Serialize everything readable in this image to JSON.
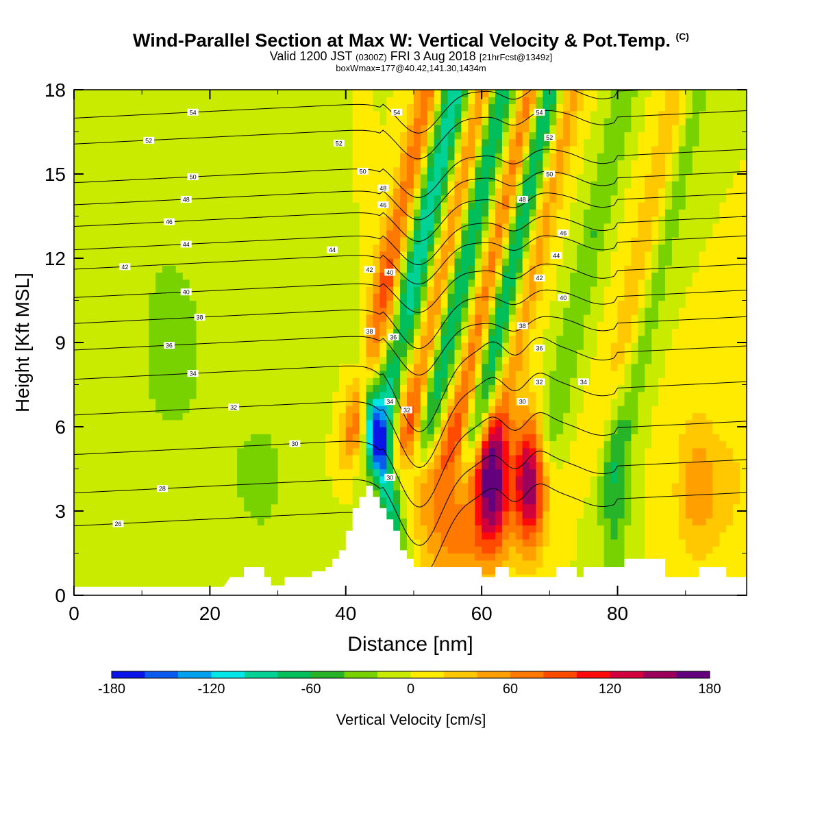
{
  "header": {
    "title": "Wind-Parallel Section at Max W: Vertical Velocity & Pot.Temp.",
    "title_mark": "(C)",
    "valid_prefix": "Valid 1200 JST",
    "valid_utc": "(0300Z)",
    "valid_date": "FRI 3 Aug 2018",
    "forecast_tag": "[21hrFcst@1349z]",
    "box_wmax": "boxWmax=177@40.42,141.30,1434m"
  },
  "chart_data": {
    "type": "heatmap",
    "title": "Wind-Parallel Section at Max W: Vertical Velocity & Pot.Temp.",
    "xlabel": "Distance [nm]",
    "ylabel": "Height [Kft MSL]",
    "xlim": [
      0,
      99
    ],
    "ylim": [
      0,
      18
    ],
    "x_ticks": [
      0,
      20,
      40,
      60,
      80
    ],
    "y_ticks": [
      0,
      3,
      6,
      9,
      12,
      15,
      18
    ],
    "colorbar": {
      "label": "Vertical Velocity [cm/s]",
      "range": [
        -180,
        180
      ],
      "tick_labels": [
        "-180",
        "-120",
        "-60",
        "0",
        "60",
        "120",
        "180"
      ],
      "tick_values": [
        -180,
        -120,
        -60,
        0,
        60,
        120,
        180
      ],
      "colors": [
        "#0a14e6",
        "#0a5af0",
        "#00a0f0",
        "#00e6e6",
        "#00d296",
        "#00be5a",
        "#28b428",
        "#78d200",
        "#c8eb00",
        "#ffeb00",
        "#ffc800",
        "#ffa000",
        "#ff7800",
        "#ff4b00",
        "#ff0a0a",
        "#d2003c",
        "#9b005a",
        "#64007d"
      ]
    },
    "terrain": [
      [
        0,
        0.3
      ],
      [
        22,
        0.3
      ],
      [
        23,
        0.65
      ],
      [
        25,
        0.65
      ],
      [
        25,
        1.0
      ],
      [
        28,
        1.0
      ],
      [
        28,
        0.65
      ],
      [
        29,
        0.65
      ],
      [
        29,
        0.35
      ],
      [
        31,
        0.35
      ],
      [
        31,
        0.65
      ],
      [
        35,
        0.65
      ],
      [
        35,
        0.85
      ],
      [
        37,
        0.85
      ],
      [
        37,
        1.0
      ],
      [
        38,
        1.0
      ],
      [
        38,
        1.3
      ],
      [
        39,
        1.3
      ],
      [
        39,
        1.6
      ],
      [
        40,
        1.6
      ],
      [
        40,
        2.3
      ],
      [
        41,
        2.3
      ],
      [
        41,
        3.1
      ],
      [
        42,
        3.1
      ],
      [
        42,
        3.5
      ],
      [
        43,
        3.5
      ],
      [
        43,
        3.9
      ],
      [
        44,
        3.9
      ],
      [
        44,
        3.5
      ],
      [
        45,
        3.5
      ],
      [
        45,
        3.1
      ],
      [
        46,
        3.1
      ],
      [
        46,
        2.7
      ],
      [
        47,
        2.7
      ],
      [
        47,
        2.3
      ],
      [
        48,
        2.3
      ],
      [
        48,
        1.6
      ],
      [
        49,
        1.6
      ],
      [
        49,
        1.3
      ],
      [
        50,
        1.3
      ],
      [
        50,
        1.0
      ],
      [
        60,
        1.0
      ],
      [
        60,
        0.65
      ],
      [
        62,
        0.65
      ],
      [
        62,
        1.0
      ],
      [
        64,
        1.0
      ],
      [
        64,
        0.65
      ],
      [
        71,
        0.65
      ],
      [
        71,
        1.0
      ],
      [
        74,
        1.0
      ],
      [
        74,
        0.65
      ],
      [
        75,
        0.65
      ],
      [
        75,
        1.0
      ],
      [
        81,
        1.0
      ],
      [
        81,
        1.3
      ],
      [
        87,
        1.3
      ],
      [
        87,
        0.65
      ],
      [
        92,
        0.65
      ],
      [
        92,
        1.0
      ],
      [
        96,
        1.0
      ],
      [
        96,
        0.65
      ],
      [
        99,
        0.65
      ]
    ],
    "theta_series": [
      {
        "level": 26,
        "label_x": 6.5,
        "label_y": 2.55
      },
      {
        "level": 28,
        "label_x": 13,
        "label_y": 3.8
      },
      {
        "level": 30,
        "label_x": 32.5,
        "label_y": 5.4
      },
      {
        "level": 32,
        "label_x": 23.5,
        "label_y": 6.7
      },
      {
        "level": 34,
        "label_x": 17.5,
        "label_y": 7.9
      },
      {
        "level": 36,
        "label_x": 14,
        "label_y": 8.9
      },
      {
        "level": 38,
        "label_x": 18.5,
        "label_y": 9.9
      },
      {
        "level": 40,
        "label_x": 16.5,
        "label_y": 10.8
      },
      {
        "level": 42,
        "label_x": 7.5,
        "label_y": 11.7
      },
      {
        "level": 44,
        "label_x": 16.5,
        "label_y": 12.5
      },
      {
        "level": 46,
        "label_x": 14,
        "label_y": 13.3
      },
      {
        "level": 48,
        "label_x": 16.5,
        "label_y": 14.1
      },
      {
        "level": 50,
        "label_x": 17.5,
        "label_y": 14.9
      },
      {
        "level": 52,
        "label_x": 11,
        "label_y": 16.2
      },
      {
        "level": 54,
        "label_x": 17.5,
        "label_y": 17.2
      }
    ],
    "theta_labels": [
      {
        "text": "26",
        "x": 6.5,
        "y": 2.55
      },
      {
        "text": "28",
        "x": 13,
        "y": 3.8
      },
      {
        "text": "30",
        "x": 32.5,
        "y": 5.4
      },
      {
        "text": "32",
        "x": 23.5,
        "y": 6.7
      },
      {
        "text": "34",
        "x": 17.5,
        "y": 7.9
      },
      {
        "text": "36",
        "x": 14,
        "y": 8.9
      },
      {
        "text": "38",
        "x": 18.5,
        "y": 9.9
      },
      {
        "text": "40",
        "x": 16.5,
        "y": 10.8
      },
      {
        "text": "42",
        "x": 7.5,
        "y": 11.7
      },
      {
        "text": "44",
        "x": 16.5,
        "y": 12.5
      },
      {
        "text": "46",
        "x": 14,
        "y": 13.3
      },
      {
        "text": "48",
        "x": 16.5,
        "y": 14.1
      },
      {
        "text": "50",
        "x": 17.5,
        "y": 14.9
      },
      {
        "text": "52",
        "x": 11,
        "y": 16.2
      },
      {
        "text": "54",
        "x": 17.5,
        "y": 17.2
      },
      {
        "text": "44",
        "x": 38,
        "y": 12.3
      },
      {
        "text": "52",
        "x": 39,
        "y": 16.1
      },
      {
        "text": "50",
        "x": 42.5,
        "y": 15.1
      },
      {
        "text": "48",
        "x": 45.5,
        "y": 14.5
      },
      {
        "text": "46",
        "x": 45.5,
        "y": 13.9
      },
      {
        "text": "42",
        "x": 43.5,
        "y": 11.6
      },
      {
        "text": "40",
        "x": 46.5,
        "y": 11.5
      },
      {
        "text": "38",
        "x": 43.5,
        "y": 9.4
      },
      {
        "text": "36",
        "x": 47,
        "y": 9.2
      },
      {
        "text": "34",
        "x": 46.5,
        "y": 6.9
      },
      {
        "text": "32",
        "x": 49,
        "y": 6.6
      },
      {
        "text": "30",
        "x": 46.5,
        "y": 4.2
      },
      {
        "text": "54",
        "x": 47.5,
        "y": 17.2
      },
      {
        "text": "54",
        "x": 68.5,
        "y": 17.2
      },
      {
        "text": "52",
        "x": 70,
        "y": 16.3
      },
      {
        "text": "50",
        "x": 70,
        "y": 15.0
      },
      {
        "text": "48",
        "x": 66,
        "y": 14.1
      },
      {
        "text": "46",
        "x": 72,
        "y": 12.9
      },
      {
        "text": "44",
        "x": 71,
        "y": 12.1
      },
      {
        "text": "42",
        "x": 68.5,
        "y": 11.3
      },
      {
        "text": "40",
        "x": 72,
        "y": 10.6
      },
      {
        "text": "38",
        "x": 66,
        "y": 9.6
      },
      {
        "text": "36",
        "x": 68.5,
        "y": 8.8
      },
      {
        "text": "32",
        "x": 68.5,
        "y": 7.6
      },
      {
        "text": "30",
        "x": 66,
        "y": 6.9
      },
      {
        "text": "34",
        "x": 75,
        "y": 7.6
      }
    ]
  }
}
